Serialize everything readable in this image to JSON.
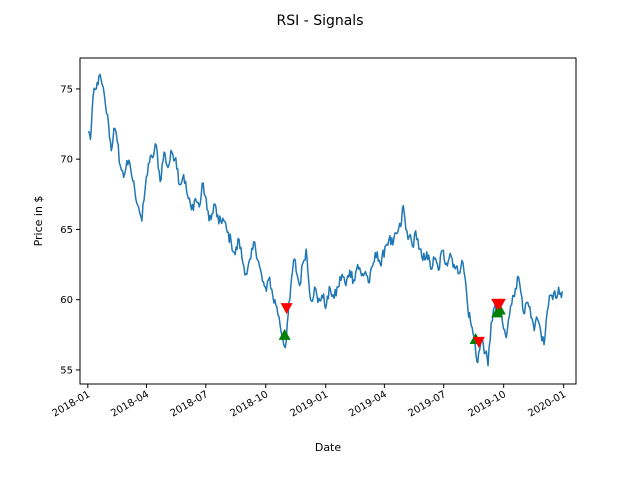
{
  "chart_data": {
    "type": "line",
    "title": "RSI - Signals",
    "xlabel": "Date",
    "ylabel": "Price in $",
    "xlim": [
      "2017-12-20",
      "2020-01-20"
    ],
    "ylim": [
      54,
      77.2
    ],
    "x_ticks": [
      "2018-01",
      "2018-04",
      "2018-07",
      "2018-10",
      "2019-01",
      "2019-04",
      "2019-07",
      "2019-10",
      "2020-01"
    ],
    "y_ticks": [
      55,
      60,
      65,
      70,
      75
    ],
    "grid": false,
    "line_color": "#1f77b4",
    "buy_color": "#008000",
    "sell_color": "#ff0000",
    "price_anchors": [
      [
        "2018-01-02",
        72.0
      ],
      [
        "2018-01-05",
        71.4
      ],
      [
        "2018-01-09",
        74.4
      ],
      [
        "2018-01-14",
        75.0
      ],
      [
        "2018-01-18",
        75.9
      ],
      [
        "2018-01-23",
        75.3
      ],
      [
        "2018-01-28",
        73.9
      ],
      [
        "2018-02-02",
        72.4
      ],
      [
        "2018-02-06",
        70.6
      ],
      [
        "2018-02-10",
        72.2
      ],
      [
        "2018-02-15",
        71.3
      ],
      [
        "2018-02-20",
        69.5
      ],
      [
        "2018-02-25",
        68.7
      ],
      [
        "2018-03-02",
        69.9
      ],
      [
        "2018-03-08",
        69.2
      ],
      [
        "2018-03-14",
        67.8
      ],
      [
        "2018-03-20",
        66.6
      ],
      [
        "2018-03-25",
        65.6
      ],
      [
        "2018-03-30",
        67.9
      ],
      [
        "2018-04-04",
        69.7
      ],
      [
        "2018-04-10",
        70.1
      ],
      [
        "2018-04-16",
        71.0
      ],
      [
        "2018-04-22",
        68.4
      ],
      [
        "2018-04-28",
        70.5
      ],
      [
        "2018-05-04",
        69.4
      ],
      [
        "2018-05-10",
        70.5
      ],
      [
        "2018-05-16",
        70.1
      ],
      [
        "2018-05-22",
        68.2
      ],
      [
        "2018-05-28",
        68.9
      ],
      [
        "2018-06-03",
        67.4
      ],
      [
        "2018-06-09",
        66.4
      ],
      [
        "2018-06-15",
        67.2
      ],
      [
        "2018-06-21",
        66.6
      ],
      [
        "2018-06-27",
        68.3
      ],
      [
        "2018-07-03",
        66.4
      ],
      [
        "2018-07-09",
        65.7
      ],
      [
        "2018-07-15",
        66.8
      ],
      [
        "2018-07-21",
        65.4
      ],
      [
        "2018-07-27",
        65.8
      ],
      [
        "2018-08-03",
        64.8
      ],
      [
        "2018-08-09",
        64.1
      ],
      [
        "2018-08-15",
        63.2
      ],
      [
        "2018-08-21",
        64.3
      ],
      [
        "2018-08-27",
        62.6
      ],
      [
        "2018-09-02",
        61.8
      ],
      [
        "2018-09-08",
        62.9
      ],
      [
        "2018-09-14",
        64.1
      ],
      [
        "2018-09-20",
        62.7
      ],
      [
        "2018-09-26",
        61.3
      ],
      [
        "2018-10-02",
        60.6
      ],
      [
        "2018-10-07",
        61.6
      ],
      [
        "2018-10-12",
        60.2
      ],
      [
        "2018-10-18",
        59.5
      ],
      [
        "2018-10-23",
        58.2
      ],
      [
        "2018-10-27",
        57.3
      ],
      [
        "2018-10-31",
        56.6
      ],
      [
        "2018-11-03",
        58.3
      ],
      [
        "2018-11-07",
        60.0
      ],
      [
        "2018-11-10",
        61.7
      ],
      [
        "2018-11-14",
        62.9
      ],
      [
        "2018-11-18",
        61.8
      ],
      [
        "2018-11-22",
        61.0
      ],
      [
        "2018-11-27",
        62.6
      ],
      [
        "2018-12-02",
        63.6
      ],
      [
        "2018-12-06",
        61.3
      ],
      [
        "2018-12-10",
        59.9
      ],
      [
        "2018-12-15",
        60.9
      ],
      [
        "2018-12-20",
        59.8
      ],
      [
        "2018-12-26",
        60.3
      ],
      [
        "2019-01-02",
        59.6
      ],
      [
        "2019-01-08",
        60.8
      ],
      [
        "2019-01-14",
        60.1
      ],
      [
        "2019-01-20",
        60.9
      ],
      [
        "2019-01-26",
        61.8
      ],
      [
        "2019-02-01",
        61.0
      ],
      [
        "2019-02-07",
        62.1
      ],
      [
        "2019-02-13",
        61.4
      ],
      [
        "2019-02-19",
        62.5
      ],
      [
        "2019-02-25",
        61.7
      ],
      [
        "2019-03-03",
        62.0
      ],
      [
        "2019-03-09",
        61.2
      ],
      [
        "2019-03-15",
        62.6
      ],
      [
        "2019-03-21",
        63.4
      ],
      [
        "2019-03-27",
        62.4
      ],
      [
        "2019-04-02",
        63.8
      ],
      [
        "2019-04-08",
        64.3
      ],
      [
        "2019-04-14",
        63.9
      ],
      [
        "2019-04-20",
        64.7
      ],
      [
        "2019-04-26",
        65.2
      ],
      [
        "2019-04-30",
        66.7
      ],
      [
        "2019-05-04",
        65.0
      ],
      [
        "2019-05-09",
        64.5
      ],
      [
        "2019-05-14",
        63.8
      ],
      [
        "2019-05-19",
        64.9
      ],
      [
        "2019-05-24",
        63.6
      ],
      [
        "2019-05-30",
        62.8
      ],
      [
        "2019-06-05",
        63.4
      ],
      [
        "2019-06-11",
        62.2
      ],
      [
        "2019-06-17",
        62.9
      ],
      [
        "2019-06-23",
        62.1
      ],
      [
        "2019-06-29",
        63.5
      ],
      [
        "2019-07-05",
        62.6
      ],
      [
        "2019-07-11",
        63.3
      ],
      [
        "2019-07-17",
        62.5
      ],
      [
        "2019-07-23",
        61.9
      ],
      [
        "2019-07-29",
        62.8
      ],
      [
        "2019-08-03",
        61.5
      ],
      [
        "2019-08-07",
        59.4
      ],
      [
        "2019-08-11",
        58.5
      ],
      [
        "2019-08-15",
        57.6
      ],
      [
        "2019-08-18",
        56.9
      ],
      [
        "2019-08-21",
        55.6
      ],
      [
        "2019-08-25",
        56.4
      ],
      [
        "2019-08-29",
        57.3
      ],
      [
        "2019-09-03",
        56.2
      ],
      [
        "2019-09-07",
        55.3
      ],
      [
        "2019-09-12",
        58.4
      ],
      [
        "2019-09-17",
        59.5
      ],
      [
        "2019-09-21",
        58.9
      ],
      [
        "2019-09-26",
        59.3
      ],
      [
        "2019-10-01",
        57.9
      ],
      [
        "2019-10-05",
        57.3
      ],
      [
        "2019-10-10",
        58.9
      ],
      [
        "2019-10-15",
        60.3
      ],
      [
        "2019-10-19",
        60.8
      ],
      [
        "2019-10-24",
        61.6
      ],
      [
        "2019-10-29",
        60.2
      ],
      [
        "2019-11-02",
        59.0
      ],
      [
        "2019-11-07",
        59.8
      ],
      [
        "2019-11-12",
        58.7
      ],
      [
        "2019-11-17",
        57.8
      ],
      [
        "2019-11-22",
        58.6
      ],
      [
        "2019-11-27",
        57.7
      ],
      [
        "2019-12-02",
        56.8
      ],
      [
        "2019-12-07",
        59.2
      ],
      [
        "2019-12-12",
        60.3
      ],
      [
        "2019-12-17",
        60.5
      ],
      [
        "2019-12-23",
        60.4
      ],
      [
        "2019-12-30",
        60.6
      ]
    ],
    "buy_signals": [
      [
        "2018-10-30",
        57.5
      ],
      [
        "2019-08-19",
        57.2
      ],
      [
        "2019-09-21",
        59.1
      ],
      [
        "2019-09-25",
        59.3
      ]
    ],
    "sell_signals": [
      [
        "2018-11-02",
        59.4
      ],
      [
        "2019-08-24",
        57.0
      ],
      [
        "2019-09-21",
        59.7
      ],
      [
        "2019-09-25",
        59.7
      ]
    ]
  }
}
